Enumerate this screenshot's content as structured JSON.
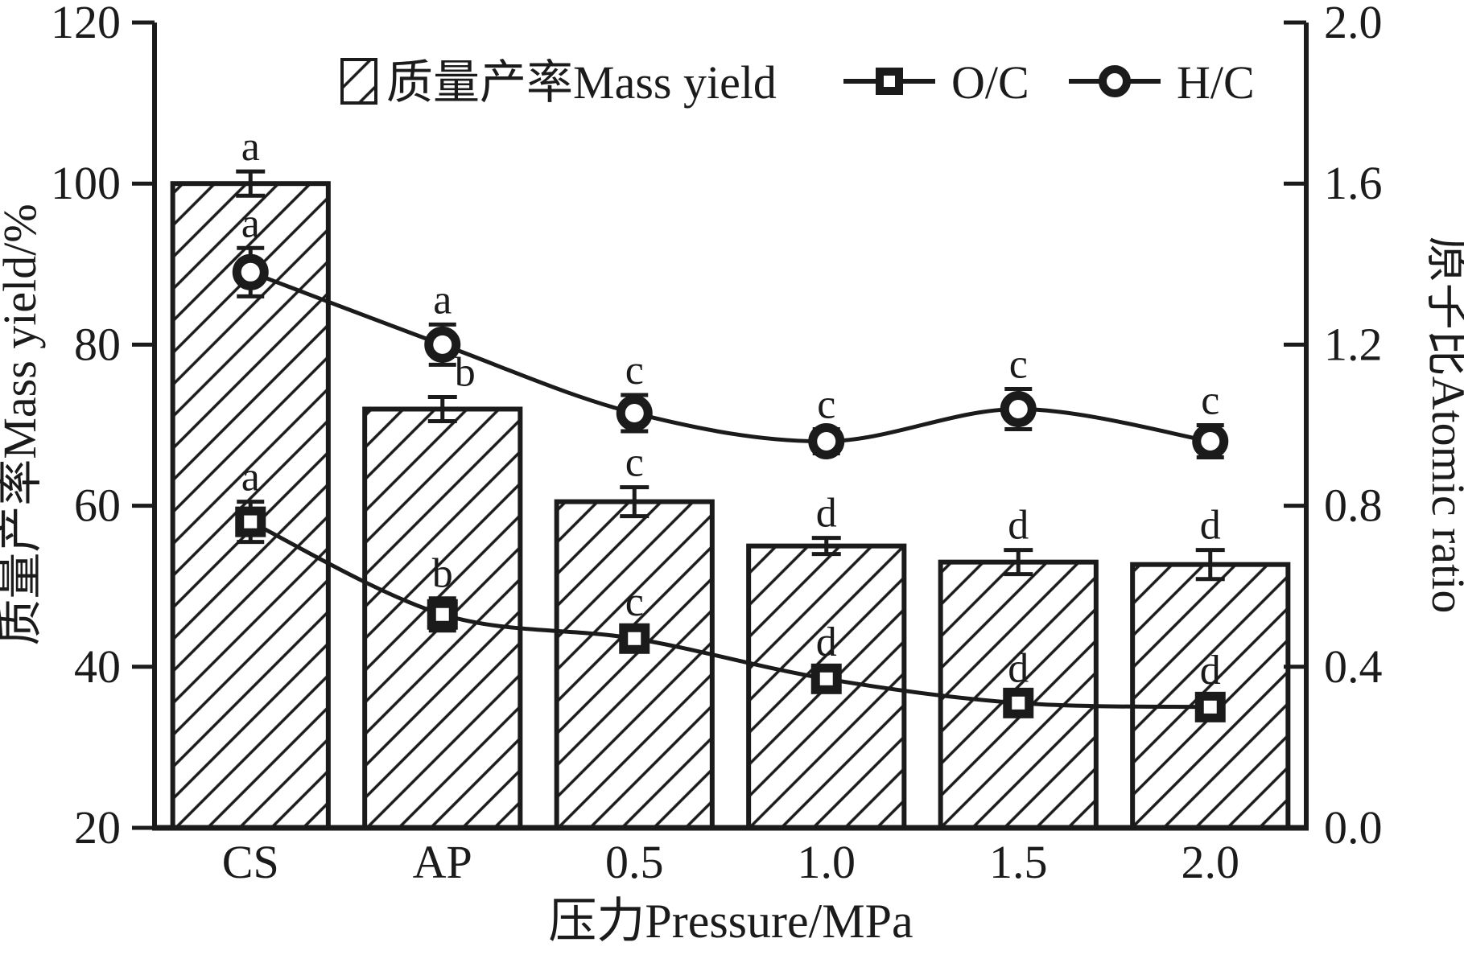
{
  "figure": {
    "background": "#ffffff",
    "ink": "#1b1b1b"
  },
  "chart_data": {
    "type": "bar",
    "subtype": "bar-and-line-composite",
    "categories": [
      "CS",
      "AP",
      "0.5",
      "1.0",
      "1.5",
      "2.0"
    ],
    "x_axis": {
      "label": "压力Pressure/MPa"
    },
    "left_axis": {
      "label": "质量产率Mass yield/%",
      "min": 20,
      "max": 120,
      "ticks": [
        "20",
        "40",
        "60",
        "80",
        "100",
        "120"
      ]
    },
    "right_axis": {
      "label": "原子比Atomic ratio",
      "min": 0.0,
      "max": 2.0,
      "ticks": [
        "0.0",
        "0.4",
        "0.8",
        "1.2",
        "1.6",
        "2.0"
      ]
    },
    "bar_series": {
      "name": "质量产率Mass yield",
      "axis": "left",
      "fill": "hatch-diagonal",
      "values": [
        100,
        72,
        60.5,
        55,
        53,
        52.7
      ],
      "errors": [
        1.5,
        1.5,
        1.8,
        1.0,
        1.5,
        1.8
      ],
      "letters": [
        "a",
        "b",
        "c",
        "d",
        "d",
        "d"
      ],
      "letter_dx": [
        0,
        28,
        0,
        0,
        0,
        0
      ]
    },
    "line_series": [
      {
        "name": "O/C",
        "axis": "right",
        "marker": "square",
        "values": [
          0.76,
          0.53,
          0.47,
          0.37,
          0.31,
          0.3
        ],
        "errors": [
          0.05,
          0.04,
          0.03,
          0.03,
          0.025,
          0.03
        ],
        "letters": [
          "a",
          "b",
          "c",
          "d",
          "d",
          "d"
        ]
      },
      {
        "name": "H/C",
        "axis": "right",
        "marker": "circle",
        "values": [
          1.38,
          1.2,
          1.03,
          0.96,
          1.04,
          0.96
        ],
        "errors": [
          0.06,
          0.05,
          0.045,
          0.03,
          0.05,
          0.04
        ],
        "letters": [
          "a",
          "a",
          "c",
          "c",
          "c",
          "c"
        ]
      }
    ],
    "legend": {
      "position": "top",
      "items": [
        {
          "swatch": "hatch",
          "label": "质量产率Mass yield"
        },
        {
          "swatch": "square-marker",
          "label": "O/C"
        },
        {
          "swatch": "circle-marker",
          "label": "H/C"
        }
      ]
    },
    "grid": false,
    "ylim_left": [
      20,
      120
    ],
    "ylim_right": [
      0.0,
      2.0
    ]
  }
}
